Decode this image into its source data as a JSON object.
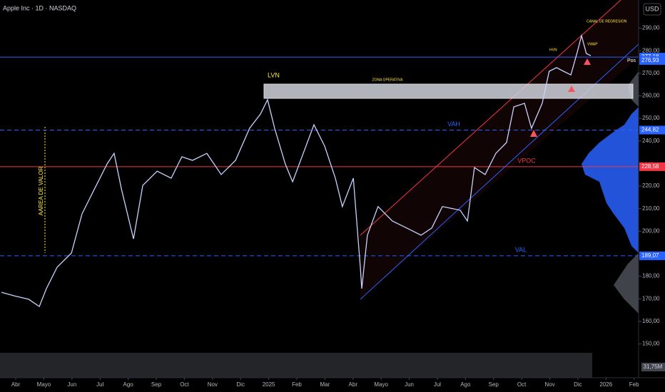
{
  "chart_data": {
    "type": "line",
    "title": "Apple Inc · 1D · NASDAQ",
    "currency": "USD",
    "xlim": [
      -0.56,
      22.16
    ],
    "xticks": [
      {
        "value": 0,
        "label": "Abr"
      },
      {
        "value": 1,
        "label": "Mayo"
      },
      {
        "value": 2,
        "label": "Jun"
      },
      {
        "value": 3,
        "label": "Jul"
      },
      {
        "value": 4,
        "label": "Ago"
      },
      {
        "value": 5,
        "label": "Sep"
      },
      {
        "value": 6,
        "label": "Oct"
      },
      {
        "value": 7,
        "label": "Nov"
      },
      {
        "value": 8,
        "label": "Dic"
      },
      {
        "value": 9,
        "label": "2025"
      },
      {
        "value": 10,
        "label": "Feb"
      },
      {
        "value": 11,
        "label": "Mar"
      },
      {
        "value": 12,
        "label": "Abr"
      },
      {
        "value": 13,
        "label": "Mayo"
      },
      {
        "value": 14,
        "label": "Jun"
      },
      {
        "value": 15,
        "label": "Jul"
      },
      {
        "value": 16,
        "label": "Ago"
      },
      {
        "value": 17,
        "label": "Sep"
      },
      {
        "value": 18,
        "label": "Oct"
      },
      {
        "value": 19,
        "label": "Nov"
      },
      {
        "value": 20,
        "label": "Dic"
      },
      {
        "value": 21,
        "label": "2026"
      },
      {
        "value": 22,
        "label": "Feb"
      }
    ],
    "ylim": [
      135,
      302.5
    ],
    "yticks": [
      {
        "value": 290,
        "label": "290,00"
      },
      {
        "value": 280,
        "label": "280,00"
      },
      {
        "value": 270,
        "label": "270,00"
      },
      {
        "value": 260,
        "label": "260,00"
      },
      {
        "value": 250,
        "label": "250,00"
      },
      {
        "value": 240,
        "label": "240,00"
      },
      {
        "value": 220,
        "label": "220,00"
      },
      {
        "value": 210,
        "label": "210,00"
      },
      {
        "value": 200,
        "label": "200,00"
      },
      {
        "value": 180,
        "label": "180,00"
      },
      {
        "value": 170,
        "label": "170,00"
      },
      {
        "value": 160,
        "label": "160,00"
      },
      {
        "value": 150,
        "label": "150,00"
      }
    ],
    "series": [
      {
        "color": "#c8d2ff",
        "x": [
          -0.51,
          -0.05,
          0.46,
          0.84,
          1.09,
          1.47,
          1.98,
          2.36,
          2.74,
          3.25,
          3.5,
          3.76,
          4.19,
          4.52,
          5.03,
          5.53,
          5.91,
          6.29,
          6.8,
          7.31,
          7.82,
          8.32,
          8.71,
          8.96,
          9.21,
          9.59,
          9.85,
          10.23,
          10.61,
          10.99,
          11.37,
          11.62,
          12.01,
          12.26,
          12.31,
          12.51,
          12.89,
          13.4,
          13.91,
          14.42,
          14.8,
          15.18,
          15.81,
          16.07,
          16.32,
          16.7,
          17.08,
          17.46,
          17.72,
          18.1,
          18.35,
          18.73,
          18.98,
          19.24,
          19.49,
          19.75,
          20.0,
          20.13,
          20.3,
          20.46
        ],
        "values": [
          172.9,
          171.3,
          169.8,
          166.6,
          174.5,
          184.0,
          190.3,
          207.7,
          217.2,
          229.8,
          234.5,
          218.7,
          196.6,
          220.3,
          226.6,
          223.5,
          233.0,
          231.4,
          234.5,
          225.1,
          231.4,
          245.6,
          252.0,
          258.3,
          245.6,
          229.8,
          221.9,
          234.5,
          247.2,
          237.7,
          223.5,
          210.9,
          223.5,
          184.0,
          174.5,
          198.2,
          210.9,
          204.5,
          201.4,
          198.2,
          201.4,
          210.9,
          209.3,
          204.5,
          228.2,
          225.1,
          234.5,
          239.3,
          255.1,
          256.7,
          245.6,
          256.7,
          270.9,
          272.5,
          270.9,
          269.3,
          280.4,
          286.7,
          278.8,
          277.8
        ]
      }
    ],
    "levels": [
      {
        "name": "VAH",
        "value": 244.82,
        "value_label": "244,82",
        "color": "#2962ff",
        "style": "dashed"
      },
      {
        "name": "VPOC",
        "value": 228.58,
        "value_label": "228,58",
        "color": "#f23645",
        "style": "solid"
      },
      {
        "name": "VAL",
        "value": 189.07,
        "value_label": "189,07",
        "color": "#2962ff",
        "style": "dashed"
      },
      {
        "value": 277.18,
        "value_label": "277,18",
        "color": "#2962ff",
        "style": "solid"
      }
    ],
    "price_label": {
      "value": 276.93,
      "value_label": "276,93",
      "tag": "Pos"
    },
    "volume_label": "31,75M",
    "annotations": {
      "lvn": "LVN",
      "zone": "ZONA OPERATIVA",
      "area": "AAREA DE VALOR",
      "channel": "CANAL DE REGRESION",
      "hvn": "HVN",
      "vwap": "VWAP"
    }
  }
}
